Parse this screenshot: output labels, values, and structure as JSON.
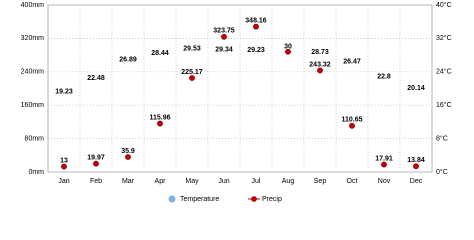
{
  "chart_data": {
    "type": "climate",
    "categories": [
      "Jan",
      "Feb",
      "Mar",
      "Apr",
      "May",
      "Jun",
      "Jul",
      "Aug",
      "Sep",
      "Oct",
      "Nov",
      "Dec"
    ],
    "series": [
      {
        "name": "Temperature",
        "color": "#7fb2e5",
        "axis": "y2",
        "values": [
          19.23,
          22.48,
          26.89,
          28.44,
          29.53,
          29.34,
          29.23,
          30,
          28.73,
          26.47,
          22.8,
          20.14
        ]
      },
      {
        "name": "Precip",
        "color": "#cc0000",
        "values": [
          13,
          19.97,
          35.9,
          115.96,
          225.17,
          323.75,
          348.16,
          288,
          243.32,
          110.65,
          17.91,
          13.84
        ],
        "value_labels": [
          "13",
          "19.97",
          "35.9",
          "115.96",
          "225.17",
          "323.75",
          "348.16",
          null,
          "243.32",
          "110.65",
          "17.91",
          "13.84"
        ]
      }
    ],
    "ylim": [
      0,
      400
    ],
    "yticks": [
      {
        "value": 0,
        "label": "0mm"
      },
      {
        "value": 80,
        "label": "80mm"
      },
      {
        "value": 160,
        "label": "160mm"
      },
      {
        "value": 240,
        "label": "240mm"
      },
      {
        "value": 320,
        "label": "320mm"
      },
      {
        "value": 400,
        "label": "400mm"
      }
    ],
    "y2lim": [
      0,
      40
    ],
    "y2ticks": [
      {
        "value": 0,
        "label": "0°C"
      },
      {
        "value": 8,
        "label": "8°C"
      },
      {
        "value": 16,
        "label": "16°C"
      },
      {
        "value": 24,
        "label": "24°C"
      },
      {
        "value": 32,
        "label": "32°C"
      },
      {
        "value": 40,
        "label": "40°C"
      }
    ],
    "grid": true
  }
}
